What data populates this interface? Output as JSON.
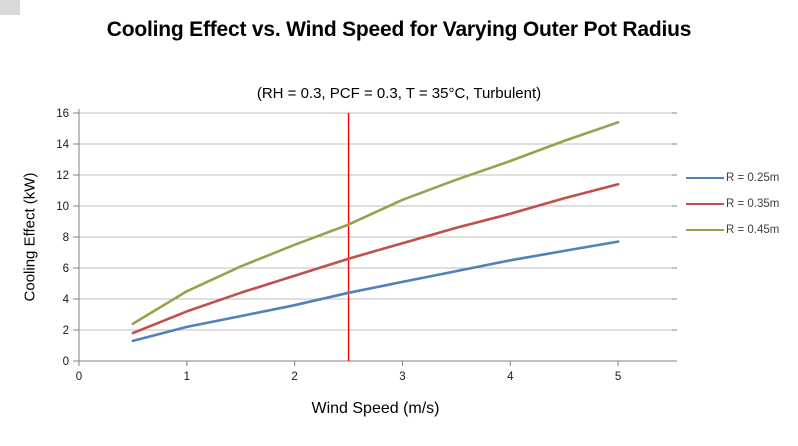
{
  "chart_data": {
    "type": "line",
    "title": "Cooling Effect vs. Wind Speed for Varying Outer Pot Radius",
    "subtitle": "(RH = 0.3, PCF = 0.3, T = 35°C, Turbulent)",
    "xlabel": "Wind Speed (m/s)",
    "ylabel": "Cooling Effect  (kW)",
    "x": [
      0.5,
      1,
      1.5,
      2,
      2.5,
      3,
      3.5,
      4,
      4.5,
      5
    ],
    "series": [
      {
        "name": "R = 0.25m",
        "color": "#4F81BD",
        "values": [
          1.3,
          2.2,
          2.9,
          3.6,
          4.4,
          5.1,
          5.8,
          6.5,
          7.1,
          7.7
        ]
      },
      {
        "name": "R = 0.35m",
        "color": "#C0504D",
        "values": [
          1.8,
          3.2,
          4.4,
          5.5,
          6.6,
          7.6,
          8.6,
          9.5,
          10.5,
          11.4
        ]
      },
      {
        "name": "R = 0.45m",
        "color": "#9AA14C",
        "values": [
          2.4,
          4.5,
          6.1,
          7.5,
          8.8,
          10.4,
          11.7,
          12.9,
          14.2,
          15.4
        ]
      }
    ],
    "xlim": [
      0,
      5.5
    ],
    "ylim": [
      0,
      16
    ],
    "x_ticks": [
      0,
      1,
      2,
      3,
      4,
      5
    ],
    "y_ticks": [
      0,
      2,
      4,
      6,
      8,
      10,
      12,
      14,
      16
    ],
    "grid": "horizontal",
    "legend_position": "right",
    "vline_x": 2.5,
    "vline_color": "#FF0000",
    "axis_color": "#808080",
    "grid_color": "#BFBFBF",
    "tick_label_color": "#1a1a1a"
  }
}
